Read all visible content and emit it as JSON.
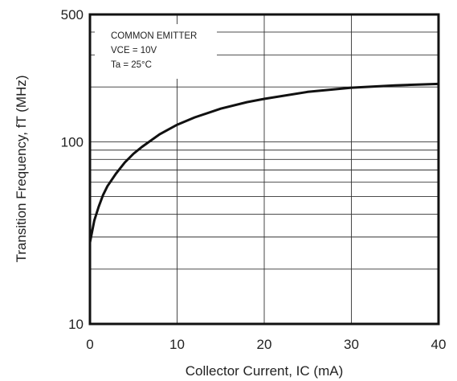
{
  "chart_data": {
    "type": "line",
    "title": "",
    "xlabel": "Collector Current, IC (mA)",
    "ylabel": "Transition Frequency, fT (MHz)",
    "xlim": [
      0,
      40
    ],
    "ylim": [
      10,
      500
    ],
    "yscale": "log",
    "grid": true,
    "x_ticks": [
      0,
      10,
      20,
      30,
      40
    ],
    "y_ticks": [
      10,
      100,
      500
    ],
    "annotations": [
      "COMMON EMITTER",
      "VCE = 10V",
      "Ta = 25°C"
    ],
    "series": [
      {
        "x": [
          0,
          0.5,
          1,
          1.5,
          2,
          3,
          4,
          5,
          6,
          8,
          10,
          12,
          15,
          18,
          20,
          25,
          30,
          35,
          40
        ],
        "y": [
          28,
          37,
          44,
          51,
          57,
          67,
          77,
          86,
          94,
          110,
          124,
          136,
          152,
          165,
          172,
          188,
          198,
          204,
          208
        ]
      }
    ]
  }
}
